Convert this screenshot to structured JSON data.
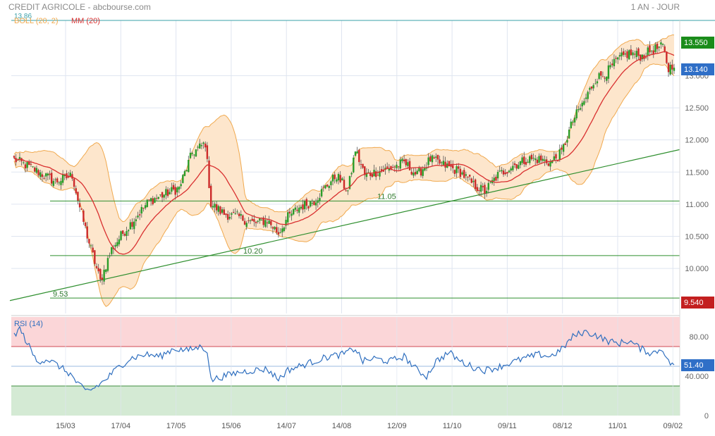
{
  "header": {
    "title": "CREDIT AGRICOLE - abcbourse.com",
    "period": "1 AN - JOUR"
  },
  "colors": {
    "candle_up": "#2a9d2a",
    "candle_down": "#cc2a2a",
    "bollinger_fill": "#fde6cc",
    "bollinger_line": "#f0a94e",
    "moving_average": "#d93030",
    "support_line": "#2f8f2f",
    "rsi_line": "#2f6fbf",
    "rsi_overbought_zone": "#fbd6d8",
    "rsi_oversold_zone": "#d4ead4",
    "price_badge": "#2f6fc7",
    "high_badge": "#1a8c1a",
    "low_badge": "#c31f1f",
    "grid": "#dfe5f0"
  },
  "chart_data": [
    {
      "type": "candlestick",
      "title": "CREDIT AGRICOLE",
      "period": "1 AN - JOUR",
      "x_tick_labels": [
        "15/03",
        "17/04",
        "17/05",
        "15/06",
        "14/07",
        "14/08",
        "12/09",
        "11/10",
        "09/11",
        "08/12",
        "11/01",
        "09/02"
      ],
      "y_tick_labels": [
        "10.000",
        "10.500",
        "11.000",
        "11.500",
        "12.000",
        "12.500",
        "13.000"
      ],
      "ylim": [
        9.3,
        13.86
      ],
      "grid": true,
      "legend": [
        "BOLL (20, 2)",
        "MM (20)"
      ],
      "legend_position": "top-left",
      "max_label": "13.86",
      "last_price": "13.140",
      "high_badge": "13.550",
      "low_badge": "9.540",
      "annotations": [
        {
          "text": "9.53",
          "value": 9.53
        },
        {
          "text": "10.20",
          "value": 10.2
        },
        {
          "text": "11.05",
          "value": 11.05
        }
      ],
      "support_levels": [
        9.54,
        10.2,
        11.05
      ],
      "trendline": [
        {
          "session": 0,
          "value": 9.5
        },
        {
          "session": 260,
          "value": 11.85
        }
      ],
      "control_points": [
        [
          0,
          11.7
        ],
        [
          10,
          11.55
        ],
        [
          22,
          11.35
        ],
        [
          31,
          11.45
        ],
        [
          35,
          10.95
        ],
        [
          40,
          10.4
        ],
        [
          46,
          9.8
        ],
        [
          52,
          10.3
        ],
        [
          58,
          10.55
        ],
        [
          65,
          10.8
        ],
        [
          72,
          11.05
        ],
        [
          80,
          11.15
        ],
        [
          88,
          11.25
        ],
        [
          95,
          11.8
        ],
        [
          102,
          11.95
        ],
        [
          105,
          11.0
        ],
        [
          112,
          10.85
        ],
        [
          120,
          10.8
        ],
        [
          128,
          10.7
        ],
        [
          135,
          10.75
        ],
        [
          141,
          10.55
        ],
        [
          146,
          10.8
        ],
        [
          152,
          10.95
        ],
        [
          160,
          11.05
        ],
        [
          167,
          11.3
        ],
        [
          172,
          11.45
        ],
        [
          178,
          11.2
        ],
        [
          182,
          11.85
        ],
        [
          187,
          11.45
        ],
        [
          193,
          11.5
        ],
        [
          200,
          11.55
        ],
        [
          208,
          11.65
        ],
        [
          215,
          11.45
        ],
        [
          222,
          11.7
        ],
        [
          230,
          11.6
        ],
        [
          238,
          11.5
        ],
        [
          245,
          11.3
        ],
        [
          251,
          11.2
        ],
        [
          258,
          11.45
        ],
        [
          266,
          11.6
        ],
        [
          274,
          11.7
        ],
        [
          280,
          11.7
        ],
        [
          286,
          11.65
        ],
        [
          292,
          11.8
        ],
        [
          298,
          12.3
        ],
        [
          304,
          12.6
        ],
        [
          310,
          12.95
        ],
        [
          316,
          13.05
        ],
        [
          322,
          13.25
        ],
        [
          328,
          13.35
        ],
        [
          335,
          13.3
        ],
        [
          340,
          13.4
        ],
        [
          346,
          13.45
        ],
        [
          349,
          13.1
        ],
        [
          352,
          13.2
        ]
      ]
    },
    {
      "type": "line",
      "title": "RSI (14)",
      "y_tick_labels": [
        "0",
        "40.000",
        "80.00"
      ],
      "ylim": [
        0,
        100
      ],
      "overbought": 70,
      "oversold": 30,
      "last_value": "51.40",
      "control_points": [
        [
          0,
          82
        ],
        [
          3,
          88
        ],
        [
          8,
          70
        ],
        [
          12,
          55
        ],
        [
          18,
          57
        ],
        [
          24,
          50
        ],
        [
          30,
          42
        ],
        [
          34,
          32
        ],
        [
          38,
          25
        ],
        [
          42,
          27
        ],
        [
          48,
          35
        ],
        [
          55,
          48
        ],
        [
          62,
          58
        ],
        [
          70,
          62
        ],
        [
          78,
          60
        ],
        [
          85,
          68
        ],
        [
          92,
          66
        ],
        [
          100,
          70
        ],
        [
          103,
          66
        ],
        [
          105,
          36
        ],
        [
          112,
          40
        ],
        [
          120,
          44
        ],
        [
          128,
          46
        ],
        [
          135,
          47
        ],
        [
          141,
          37
        ],
        [
          146,
          46
        ],
        [
          152,
          50
        ],
        [
          160,
          55
        ],
        [
          168,
          60
        ],
        [
          175,
          62
        ],
        [
          182,
          68
        ],
        [
          186,
          55
        ],
        [
          192,
          58
        ],
        [
          200,
          55
        ],
        [
          208,
          60
        ],
        [
          215,
          46
        ],
        [
          220,
          40
        ],
        [
          225,
          55
        ],
        [
          232,
          64
        ],
        [
          238,
          55
        ],
        [
          245,
          49
        ],
        [
          251,
          46
        ],
        [
          258,
          49
        ],
        [
          264,
          53
        ],
        [
          272,
          58
        ],
        [
          280,
          62
        ],
        [
          286,
          60
        ],
        [
          292,
          67
        ],
        [
          298,
          80
        ],
        [
          304,
          85
        ],
        [
          310,
          82
        ],
        [
          316,
          76
        ],
        [
          322,
          73
        ],
        [
          328,
          76
        ],
        [
          334,
          68
        ],
        [
          340,
          63
        ],
        [
          346,
          68
        ],
        [
          349,
          54
        ],
        [
          352,
          51.4
        ]
      ]
    }
  ]
}
